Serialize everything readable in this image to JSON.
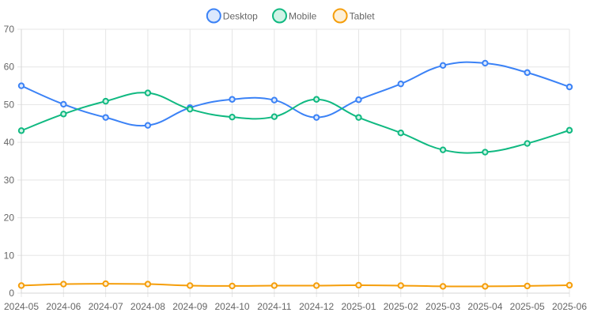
{
  "chart_data": {
    "type": "line",
    "title": "",
    "xlabel": "",
    "ylabel": "",
    "categories": [
      "2024-05",
      "2024-06",
      "2024-07",
      "2024-08",
      "2024-09",
      "2024-10",
      "2024-11",
      "2024-12",
      "2025-01",
      "2025-02",
      "2025-03",
      "2025-04",
      "2025-05",
      "2025-06"
    ],
    "ylim": [
      0,
      70
    ],
    "yticks": [
      0,
      10,
      20,
      30,
      40,
      50,
      60,
      70
    ],
    "grid": true,
    "legend_position": "top-center",
    "series": [
      {
        "name": "Desktop",
        "color": "#3b82f6",
        "fill": "#dbe8fd",
        "values": [
          55.0,
          50.1,
          46.6,
          44.5,
          49.2,
          51.4,
          51.2,
          46.6,
          51.3,
          55.5,
          60.4,
          61.0,
          58.5,
          54.7
        ]
      },
      {
        "name": "Mobile",
        "color": "#10b981",
        "fill": "#d1f3e6",
        "values": [
          43.1,
          47.5,
          50.9,
          53.1,
          48.8,
          46.7,
          46.8,
          51.4,
          46.6,
          42.5,
          38.0,
          37.4,
          39.7,
          43.2
        ]
      },
      {
        "name": "Tablet",
        "color": "#f59e0b",
        "fill": "#fdf0d8",
        "values": [
          2.0,
          2.4,
          2.5,
          2.4,
          2.0,
          1.9,
          2.0,
          2.0,
          2.1,
          2.0,
          1.8,
          1.8,
          1.9,
          2.1
        ]
      }
    ]
  }
}
